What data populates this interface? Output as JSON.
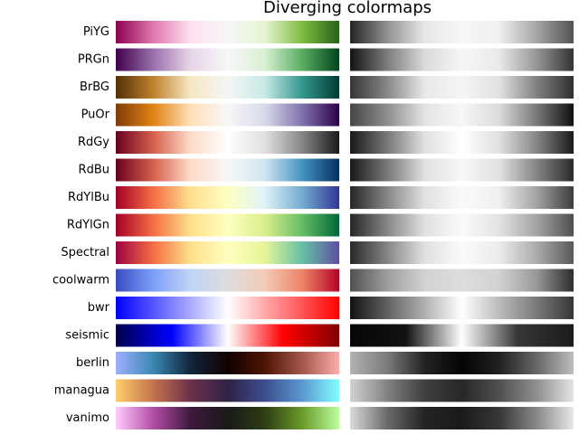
{
  "title": "Diverging colormaps",
  "colormaps": [
    {
      "name": "PiYG",
      "colors": [
        "#8e0152",
        "#de77ae",
        "#fde0ef",
        "#f7f7f7",
        "#e6f5d0",
        "#7fbc41",
        "#276419"
      ]
    },
    {
      "name": "PRGn",
      "colors": [
        "#40004b",
        "#9970ab",
        "#e7d4e8",
        "#f7f7f7",
        "#d9f0d3",
        "#5aae61",
        "#00441b"
      ]
    },
    {
      "name": "BrBG",
      "colors": [
        "#543005",
        "#bf812d",
        "#f6e8c3",
        "#f5f5f5",
        "#c7eae5",
        "#35978f",
        "#003c30"
      ]
    },
    {
      "name": "PuOr",
      "colors": [
        "#7f3b08",
        "#e08214",
        "#fee0b6",
        "#f7f7f7",
        "#d8daeb",
        "#8073ac",
        "#2d004b"
      ]
    },
    {
      "name": "RdGy",
      "colors": [
        "#67001f",
        "#d6604d",
        "#fddbc7",
        "#ffffff",
        "#e0e0e0",
        "#878787",
        "#1a1a1a"
      ]
    },
    {
      "name": "RdBu",
      "colors": [
        "#67001f",
        "#d6604d",
        "#fddbc7",
        "#f7f7f7",
        "#d1e5f0",
        "#4393c3",
        "#053061"
      ]
    },
    {
      "name": "RdYlBu",
      "colors": [
        "#a50026",
        "#f46d43",
        "#fee090",
        "#ffffbf",
        "#e0f3f8",
        "#74add1",
        "#313695"
      ]
    },
    {
      "name": "RdYlGn",
      "colors": [
        "#a50026",
        "#f46d43",
        "#fee08b",
        "#ffffbf",
        "#d9ef8b",
        "#66bd63",
        "#006837"
      ]
    },
    {
      "name": "Spectral",
      "colors": [
        "#9e0142",
        "#f46d43",
        "#fee08b",
        "#ffffbf",
        "#e6f598",
        "#66c2a5",
        "#5e4fa2"
      ]
    },
    {
      "name": "coolwarm",
      "colors": [
        "#3b4cc0",
        "#7b9ff9",
        "#c0d4f5",
        "#dddddd",
        "#f2cbb7",
        "#ee8468",
        "#b40426"
      ]
    },
    {
      "name": "bwr",
      "colors": [
        "#0000ff",
        "#ffffff",
        "#ff0000"
      ]
    },
    {
      "name": "seismic",
      "colors": [
        "#00004c",
        "#0000ff",
        "#ffffff",
        "#ff0000",
        "#7f0000"
      ]
    },
    {
      "name": "berlin",
      "colors": [
        "#9eb0ff",
        "#3a88b3",
        "#11263b",
        "#110100",
        "#4f1505",
        "#a2574a",
        "#ffadad"
      ]
    },
    {
      "name": "managua",
      "colors": [
        "#ffcf67",
        "#c3744e",
        "#6d3149",
        "#2e2246",
        "#3c4e8e",
        "#5b97d0",
        "#82ffff"
      ]
    },
    {
      "name": "vanimo",
      "colors": [
        "#ffcdfd",
        "#b34da8",
        "#3d1a3b",
        "#1a1a1a",
        "#2e3d13",
        "#6a9a2a",
        "#bbfe9d"
      ]
    }
  ]
}
